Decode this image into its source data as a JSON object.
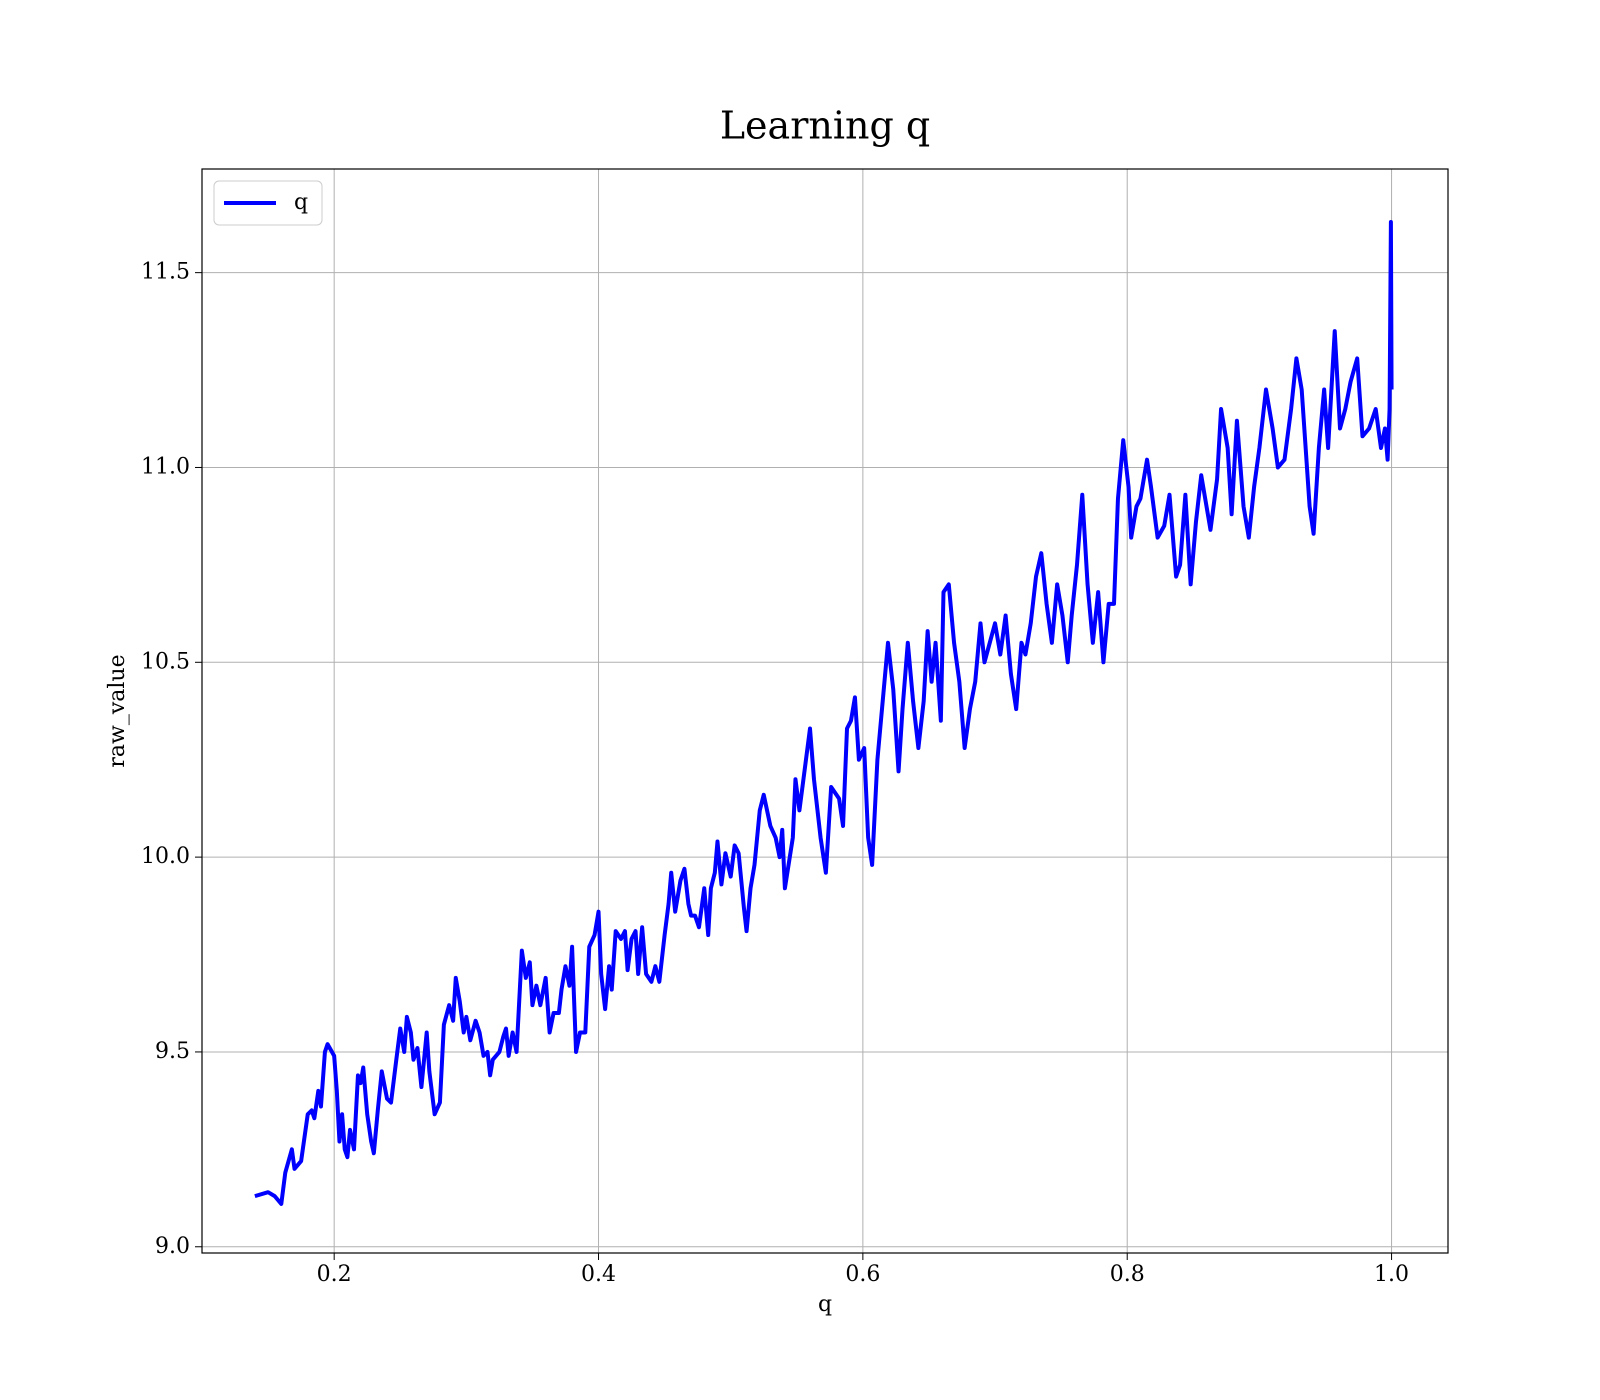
{
  "chart_data": {
    "type": "line",
    "title": "Learning q",
    "xlabel": "q",
    "ylabel": "raw_value",
    "xlim": [
      0.1,
      1.0427
    ],
    "ylim": [
      8.984,
      11.766
    ],
    "xticks": [
      0.2,
      0.4,
      0.6,
      0.8,
      {
        "value": 1.0,
        "label": "1.0"
      }
    ],
    "yticks": [
      {
        "value": 9.0,
        "label": "9.0"
      },
      9.5,
      {
        "value": 10.0,
        "label": "10.0"
      },
      10.5,
      {
        "value": 11.0,
        "label": "11.0"
      },
      11.5
    ],
    "grid": true,
    "legend": "upper left",
    "series": [
      {
        "name": "q",
        "color": "#0000ff",
        "x": [
          0.14,
          0.15,
          0.155,
          0.16,
          0.163,
          0.168,
          0.17,
          0.175,
          0.18,
          0.183,
          0.185,
          0.188,
          0.19,
          0.193,
          0.195,
          0.2,
          0.202,
          0.204,
          0.206,
          0.208,
          0.21,
          0.212,
          0.215,
          0.218,
          0.22,
          0.222,
          0.225,
          0.228,
          0.23,
          0.233,
          0.236,
          0.24,
          0.243,
          0.247,
          0.25,
          0.253,
          0.255,
          0.258,
          0.26,
          0.263,
          0.266,
          0.27,
          0.272,
          0.276,
          0.28,
          0.283,
          0.287,
          0.29,
          0.292,
          0.295,
          0.298,
          0.3,
          0.303,
          0.307,
          0.31,
          0.313,
          0.316,
          0.318,
          0.32,
          0.325,
          0.328,
          0.33,
          0.332,
          0.335,
          0.338,
          0.342,
          0.345,
          0.348,
          0.35,
          0.353,
          0.356,
          0.36,
          0.363,
          0.366,
          0.37,
          0.372,
          0.375,
          0.378,
          0.38,
          0.383,
          0.386,
          0.39,
          0.393,
          0.397,
          0.4,
          0.402,
          0.405,
          0.408,
          0.41,
          0.413,
          0.417,
          0.42,
          0.422,
          0.425,
          0.428,
          0.43,
          0.433,
          0.436,
          0.44,
          0.443,
          0.446,
          0.45,
          0.453,
          0.455,
          0.458,
          0.462,
          0.465,
          0.468,
          0.47,
          0.473,
          0.476,
          0.48,
          0.483,
          0.485,
          0.488,
          0.49,
          0.493,
          0.496,
          0.5,
          0.503,
          0.506,
          0.51,
          0.512,
          0.515,
          0.518,
          0.522,
          0.525,
          0.53,
          0.534,
          0.537,
          0.539,
          0.541,
          0.547,
          0.549,
          0.552,
          0.56,
          0.563,
          0.568,
          0.572,
          0.576,
          0.582,
          0.585,
          0.588,
          0.591,
          0.594,
          0.597,
          0.601,
          0.604,
          0.607,
          0.611,
          0.615,
          0.619,
          0.623,
          0.627,
          0.63,
          0.634,
          0.638,
          0.642,
          0.646,
          0.649,
          0.652,
          0.655,
          0.659,
          0.661,
          0.665,
          0.669,
          0.673,
          0.677,
          0.681,
          0.685,
          0.689,
          0.692,
          0.696,
          0.7,
          0.704,
          0.708,
          0.712,
          0.716,
          0.72,
          0.723,
          0.727,
          0.731,
          0.735,
          0.739,
          0.743,
          0.747,
          0.751,
          0.755,
          0.758,
          0.762,
          0.766,
          0.77,
          0.774,
          0.778,
          0.782,
          0.786,
          0.79,
          0.793,
          0.797,
          0.801,
          0.803,
          0.807,
          0.81,
          0.815,
          0.818,
          0.823,
          0.828,
          0.832,
          0.837,
          0.84,
          0.844,
          0.848,
          0.852,
          0.856,
          0.86,
          0.863,
          0.868,
          0.871,
          0.876,
          0.879,
          0.883,
          0.888,
          0.892,
          0.896,
          0.9,
          0.905,
          0.91,
          0.914,
          0.919,
          0.924,
          0.928,
          0.932,
          0.935,
          0.938,
          0.941,
          0.945,
          0.949,
          0.952,
          0.957,
          0.961,
          0.965,
          0.969,
          0.974,
          0.978,
          0.983,
          0.988,
          0.992,
          0.995,
          0.997,
          0.9985,
          0.9995,
          1.0
        ],
        "values": [
          9.13,
          9.14,
          9.13,
          9.11,
          9.19,
          9.25,
          9.2,
          9.22,
          9.34,
          9.35,
          9.33,
          9.4,
          9.36,
          9.5,
          9.52,
          9.49,
          9.4,
          9.27,
          9.34,
          9.25,
          9.23,
          9.3,
          9.25,
          9.44,
          9.42,
          9.46,
          9.34,
          9.27,
          9.24,
          9.35,
          9.45,
          9.38,
          9.37,
          9.48,
          9.56,
          9.5,
          9.59,
          9.55,
          9.48,
          9.51,
          9.41,
          9.55,
          9.45,
          9.34,
          9.37,
          9.57,
          9.62,
          9.58,
          9.69,
          9.63,
          9.55,
          9.59,
          9.53,
          9.58,
          9.55,
          9.49,
          9.5,
          9.44,
          9.48,
          9.5,
          9.54,
          9.56,
          9.49,
          9.55,
          9.5,
          9.76,
          9.69,
          9.73,
          9.62,
          9.67,
          9.62,
          9.69,
          9.55,
          9.6,
          9.6,
          9.66,
          9.72,
          9.67,
          9.77,
          9.5,
          9.55,
          9.55,
          9.77,
          9.8,
          9.86,
          9.7,
          9.61,
          9.72,
          9.66,
          9.81,
          9.79,
          9.81,
          9.71,
          9.79,
          9.81,
          9.7,
          9.82,
          9.7,
          9.68,
          9.72,
          9.68,
          9.8,
          9.88,
          9.96,
          9.86,
          9.94,
          9.97,
          9.88,
          9.85,
          9.85,
          9.82,
          9.92,
          9.8,
          9.92,
          9.96,
          10.04,
          9.93,
          10.01,
          9.95,
          10.03,
          10.01,
          9.87,
          9.81,
          9.92,
          9.98,
          10.12,
          10.16,
          10.08,
          10.05,
          10.0,
          10.07,
          9.92,
          10.05,
          10.2,
          10.12,
          10.33,
          10.2,
          10.05,
          9.96,
          10.18,
          10.15,
          10.08,
          10.33,
          10.35,
          10.41,
          10.25,
          10.28,
          10.05,
          9.98,
          10.25,
          10.4,
          10.55,
          10.43,
          10.22,
          10.38,
          10.55,
          10.4,
          10.28,
          10.4,
          10.58,
          10.45,
          10.55,
          10.35,
          10.68,
          10.7,
          10.55,
          10.45,
          10.28,
          10.38,
          10.45,
          10.6,
          10.5,
          10.55,
          10.6,
          10.52,
          10.62,
          10.47,
          10.38,
          10.55,
          10.52,
          10.6,
          10.72,
          10.78,
          10.65,
          10.55,
          10.7,
          10.62,
          10.5,
          10.62,
          10.75,
          10.93,
          10.7,
          10.55,
          10.68,
          10.5,
          10.65,
          10.65,
          10.92,
          11.07,
          10.95,
          10.82,
          10.9,
          10.92,
          11.02,
          10.95,
          10.82,
          10.85,
          10.93,
          10.72,
          10.75,
          10.93,
          10.7,
          10.86,
          10.98,
          10.9,
          10.84,
          10.97,
          11.15,
          11.05,
          10.88,
          11.12,
          10.9,
          10.82,
          10.95,
          11.05,
          11.2,
          11.1,
          11.0,
          11.02,
          11.15,
          11.28,
          11.2,
          11.05,
          10.9,
          10.83,
          11.05,
          11.2,
          11.05,
          11.35,
          11.1,
          11.15,
          11.22,
          11.28,
          11.08,
          11.1,
          11.15,
          11.05,
          11.1,
          11.02,
          11.15,
          11.63,
          11.2
        ]
      }
    ]
  }
}
